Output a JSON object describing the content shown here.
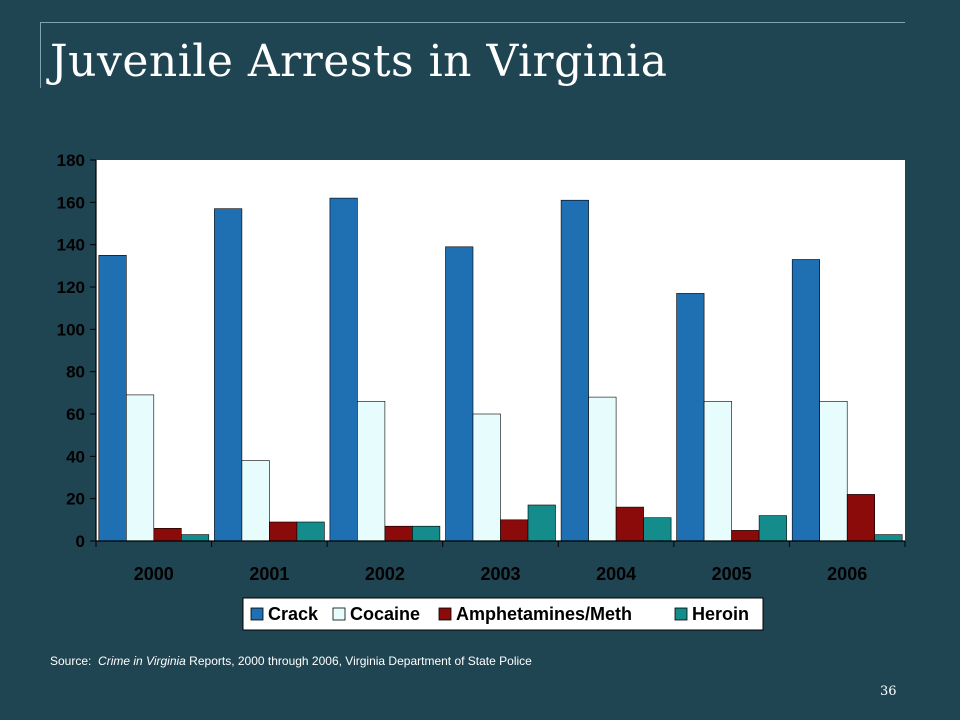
{
  "slide": {
    "title": "Juvenile Arrests in Virginia",
    "source_prefix": "Source:  ",
    "source_italic": "Crime in Virginia",
    "source_rest": " Reports, 2000 through 2006, Virginia Department of State Police",
    "page_number": "36"
  },
  "chart_data": {
    "type": "bar",
    "categories": [
      "2000",
      "2001",
      "2002",
      "2003",
      "2004",
      "2005",
      "2006"
    ],
    "series": [
      {
        "name": "Crack",
        "color": "#1f6fb3",
        "values": [
          135,
          157,
          162,
          139,
          161,
          117,
          133
        ]
      },
      {
        "name": "Cocaine",
        "color": "#e6fcfd",
        "values": [
          69,
          38,
          66,
          60,
          68,
          66,
          66
        ]
      },
      {
        "name": "Amphetamines/Meth",
        "color": "#8b0a0a",
        "values": [
          6,
          9,
          7,
          10,
          16,
          5,
          22
        ]
      },
      {
        "name": "Heroin",
        "color": "#148c8c",
        "values": [
          3,
          9,
          7,
          17,
          11,
          12,
          3
        ]
      }
    ],
    "ylim": [
      0,
      180
    ],
    "yticks": [
      0,
      20,
      40,
      60,
      80,
      100,
      120,
      140,
      160,
      180
    ],
    "grid": false,
    "legend": "bottom",
    "data_labels": true,
    "plot_background": "#ffffff",
    "title": "",
    "xlabel": "",
    "ylabel": ""
  }
}
